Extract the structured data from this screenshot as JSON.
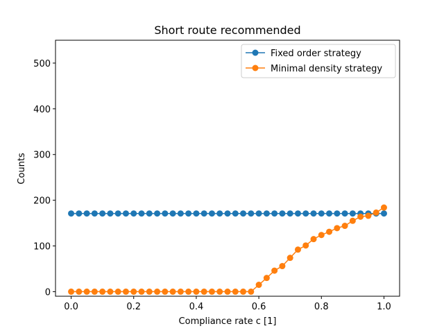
{
  "chart_data": {
    "type": "line",
    "title": "Short route recommended",
    "xlabel": "Compliance rate c [1]",
    "ylabel": "Counts",
    "xlim": [
      -0.05,
      1.05
    ],
    "ylim": [
      -10,
      550
    ],
    "xticks": [
      0.0,
      0.2,
      0.4,
      0.6,
      0.8,
      1.0
    ],
    "xtick_labels": [
      "0.0",
      "0.2",
      "0.4",
      "0.6",
      "0.8",
      "1.0"
    ],
    "yticks": [
      0,
      100,
      200,
      300,
      400,
      500
    ],
    "ytick_labels": [
      "0",
      "100",
      "200",
      "300",
      "400",
      "500"
    ],
    "grid": false,
    "legend_position": "top-right",
    "x": [
      0.0,
      0.025,
      0.05,
      0.075,
      0.1,
      0.125,
      0.15,
      0.175,
      0.2,
      0.225,
      0.25,
      0.275,
      0.3,
      0.325,
      0.35,
      0.375,
      0.4,
      0.425,
      0.45,
      0.475,
      0.5,
      0.525,
      0.55,
      0.575,
      0.6,
      0.625,
      0.65,
      0.675,
      0.7,
      0.725,
      0.75,
      0.775,
      0.8,
      0.825,
      0.85,
      0.875,
      0.9,
      0.925,
      0.95,
      0.975,
      1.0
    ],
    "series": [
      {
        "name": "Fixed order strategy",
        "color": "#1f77b4",
        "values": [
          171,
          171,
          171,
          171,
          171,
          171,
          171,
          171,
          171,
          171,
          171,
          171,
          171,
          171,
          171,
          171,
          171,
          171,
          171,
          171,
          171,
          171,
          171,
          171,
          171,
          171,
          171,
          171,
          171,
          171,
          171,
          171,
          171,
          171,
          171,
          171,
          171,
          171,
          171,
          171,
          171
        ]
      },
      {
        "name": "Minimal density strategy",
        "color": "#ff7f0e",
        "values": [
          0,
          0,
          0,
          0,
          0,
          0,
          0,
          0,
          0,
          0,
          0,
          0,
          0,
          0,
          0,
          0,
          0,
          0,
          0,
          0,
          0,
          0,
          0,
          0,
          15,
          30,
          46,
          56,
          74,
          92,
          101,
          115,
          124,
          131,
          139,
          144,
          155,
          164,
          166,
          173,
          184
        ]
      }
    ]
  }
}
